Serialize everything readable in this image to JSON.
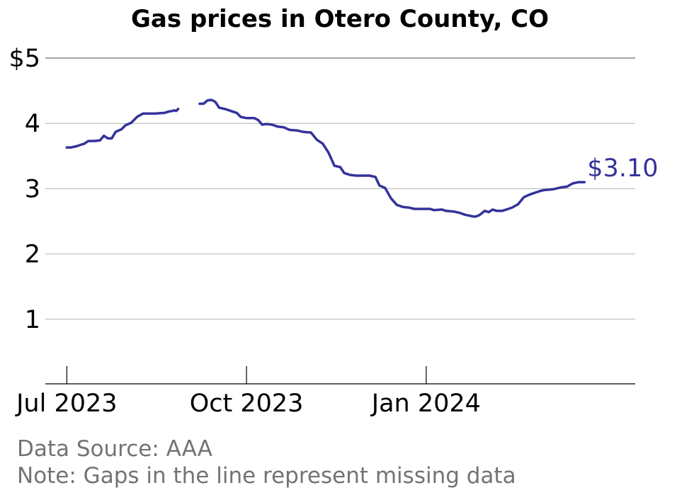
{
  "chart_data": {
    "type": "line",
    "title": "Gas prices in Otero County, CO",
    "y_ticks": [
      "$5",
      "4",
      "3",
      "2",
      "1"
    ],
    "ylim": [
      0,
      5
    ],
    "x_ticks": [
      "Jul 2023",
      "Oct 2023",
      "Jan 2024"
    ],
    "x_tick_dates": [
      "2023-07-01",
      "2023-10-01",
      "2024-01-01"
    ],
    "x_range": [
      "2023-06-20",
      "2024-04-17"
    ],
    "grid": "horizontal",
    "series_color": "#33329b",
    "end_label": "$3.10",
    "segments": [
      [
        [
          "2023-07-01",
          3.63
        ],
        [
          "2023-07-03",
          3.63
        ],
        [
          "2023-07-06",
          3.65
        ],
        [
          "2023-07-08",
          3.67
        ],
        [
          "2023-07-10",
          3.69
        ],
        [
          "2023-07-12",
          3.73
        ],
        [
          "2023-07-15",
          3.73
        ],
        [
          "2023-07-18",
          3.74
        ],
        [
          "2023-07-20",
          3.81
        ],
        [
          "2023-07-22",
          3.77
        ],
        [
          "2023-07-24",
          3.77
        ],
        [
          "2023-07-26",
          3.87
        ],
        [
          "2023-07-29",
          3.91
        ],
        [
          "2023-07-31",
          3.97
        ],
        [
          "2023-08-03",
          4.01
        ],
        [
          "2023-08-06",
          4.1
        ],
        [
          "2023-08-09",
          4.15
        ],
        [
          "2023-08-15",
          4.15
        ],
        [
          "2023-08-20",
          4.16
        ],
        [
          "2023-08-22",
          4.18
        ],
        [
          "2023-08-24",
          4.19
        ],
        [
          "2023-08-25",
          4.2
        ],
        [
          "2023-08-26",
          4.19
        ],
        [
          "2023-08-27",
          4.22
        ]
      ],
      [
        [
          "2023-09-07",
          4.3
        ],
        [
          "2023-09-09",
          4.3
        ],
        [
          "2023-09-11",
          4.35
        ],
        [
          "2023-09-13",
          4.36
        ],
        [
          "2023-09-15",
          4.33
        ],
        [
          "2023-09-17",
          4.24
        ],
        [
          "2023-09-20",
          4.22
        ],
        [
          "2023-09-23",
          4.19
        ],
        [
          "2023-09-26",
          4.16
        ],
        [
          "2023-09-28",
          4.1
        ],
        [
          "2023-10-01",
          4.08
        ],
        [
          "2023-10-05",
          4.08
        ],
        [
          "2023-10-07",
          4.05
        ],
        [
          "2023-10-09",
          3.98
        ],
        [
          "2023-10-11",
          3.99
        ],
        [
          "2023-10-14",
          3.98
        ],
        [
          "2023-10-17",
          3.95
        ],
        [
          "2023-10-20",
          3.94
        ],
        [
          "2023-10-23",
          3.9
        ],
        [
          "2023-10-27",
          3.89
        ],
        [
          "2023-10-30",
          3.87
        ],
        [
          "2023-11-03",
          3.86
        ],
        [
          "2023-11-06",
          3.75
        ],
        [
          "2023-11-09",
          3.69
        ],
        [
          "2023-11-12",
          3.55
        ],
        [
          "2023-11-15",
          3.35
        ],
        [
          "2023-11-18",
          3.33
        ],
        [
          "2023-11-20",
          3.24
        ],
        [
          "2023-11-23",
          3.21
        ],
        [
          "2023-11-26",
          3.2
        ],
        [
          "2023-11-29",
          3.2
        ],
        [
          "2023-12-03",
          3.2
        ],
        [
          "2023-12-06",
          3.18
        ],
        [
          "2023-12-08",
          3.05
        ],
        [
          "2023-12-11",
          3.01
        ],
        [
          "2023-12-14",
          2.85
        ],
        [
          "2023-12-17",
          2.75
        ],
        [
          "2023-12-20",
          2.72
        ],
        [
          "2023-12-23",
          2.71
        ],
        [
          "2023-12-26",
          2.69
        ],
        [
          "2024-01-01",
          2.69
        ],
        [
          "2024-01-03",
          2.69
        ],
        [
          "2024-01-05",
          2.67
        ],
        [
          "2024-01-09",
          2.68
        ],
        [
          "2024-01-11",
          2.66
        ],
        [
          "2024-01-15",
          2.65
        ],
        [
          "2024-01-18",
          2.63
        ],
        [
          "2024-01-21",
          2.6
        ],
        [
          "2024-01-24",
          2.58
        ],
        [
          "2024-01-26",
          2.57
        ],
        [
          "2024-01-28",
          2.59
        ],
        [
          "2024-01-31",
          2.66
        ],
        [
          "2024-02-02",
          2.64
        ],
        [
          "2024-02-04",
          2.68
        ],
        [
          "2024-02-06",
          2.66
        ],
        [
          "2024-02-09",
          2.66
        ],
        [
          "2024-02-12",
          2.69
        ],
        [
          "2024-02-14",
          2.71
        ],
        [
          "2024-02-17",
          2.76
        ],
        [
          "2024-02-20",
          2.87
        ],
        [
          "2024-02-23",
          2.91
        ],
        [
          "2024-02-26",
          2.94
        ],
        [
          "2024-02-29",
          2.97
        ],
        [
          "2024-03-02",
          2.98
        ],
        [
          "2024-03-06",
          2.99
        ],
        [
          "2024-03-10",
          3.02
        ],
        [
          "2024-03-13",
          3.03
        ],
        [
          "2024-03-16",
          3.08
        ],
        [
          "2024-03-19",
          3.1
        ],
        [
          "2024-03-22",
          3.1
        ]
      ]
    ]
  },
  "footer": {
    "source": "Data Source: AAA",
    "note": "Note: Gaps in the line represent missing data"
  }
}
